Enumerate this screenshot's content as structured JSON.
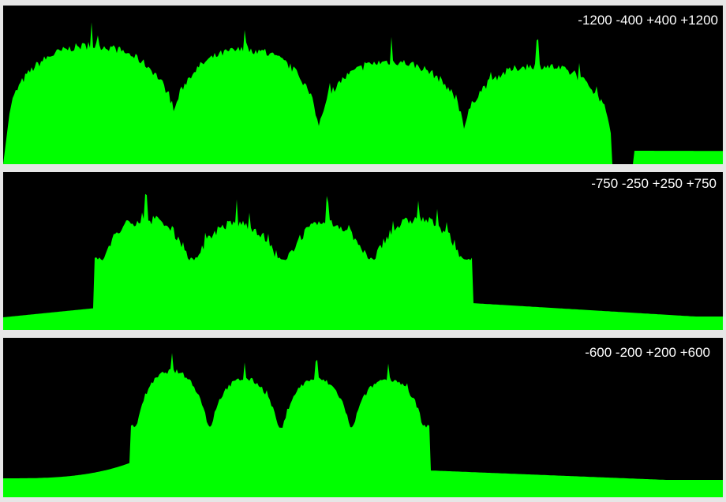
{
  "panels": [
    {
      "label": "-1200 -400 +400 +1200"
    },
    {
      "label": "-750 -250 +250 +750"
    },
    {
      "label": "-600 -200 +200 +600"
    }
  ]
}
